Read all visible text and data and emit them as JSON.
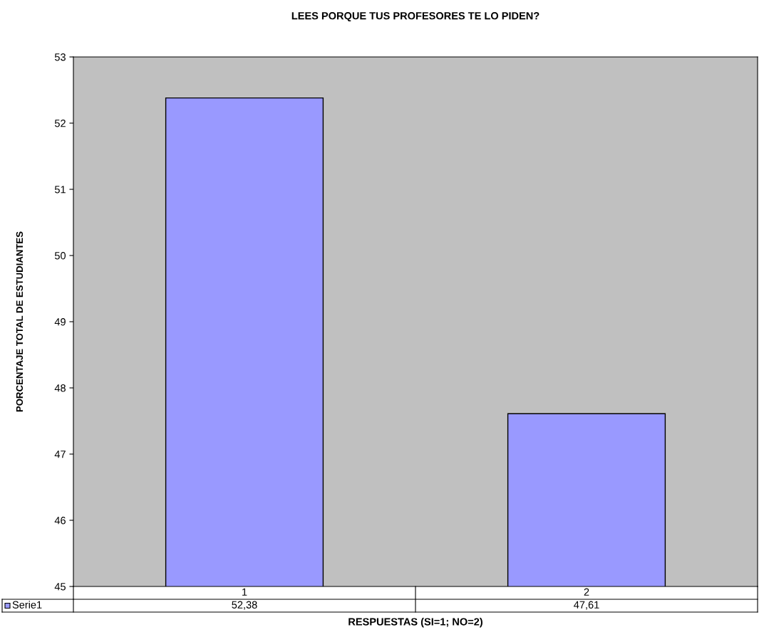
{
  "chart_data": {
    "type": "bar",
    "title": "LEES PORQUE TUS PROFESORES TE LO PIDEN?",
    "xlabel": "RESPUESTAS (SI=1; NO=2)",
    "ylabel": "PORCENTAJE TOTAL DE ESTUDIANTES",
    "categories": [
      "1",
      "2"
    ],
    "series": [
      {
        "name": "Serie1",
        "color": "#9999ff",
        "values": [
          52.38,
          47.61
        ],
        "value_labels": [
          "52,38",
          "47,61"
        ]
      }
    ],
    "ylim": [
      45,
      53
    ],
    "yticks": [
      45,
      46,
      47,
      48,
      49,
      50,
      51,
      52,
      53
    ],
    "grid": false,
    "legend": "bottom"
  }
}
